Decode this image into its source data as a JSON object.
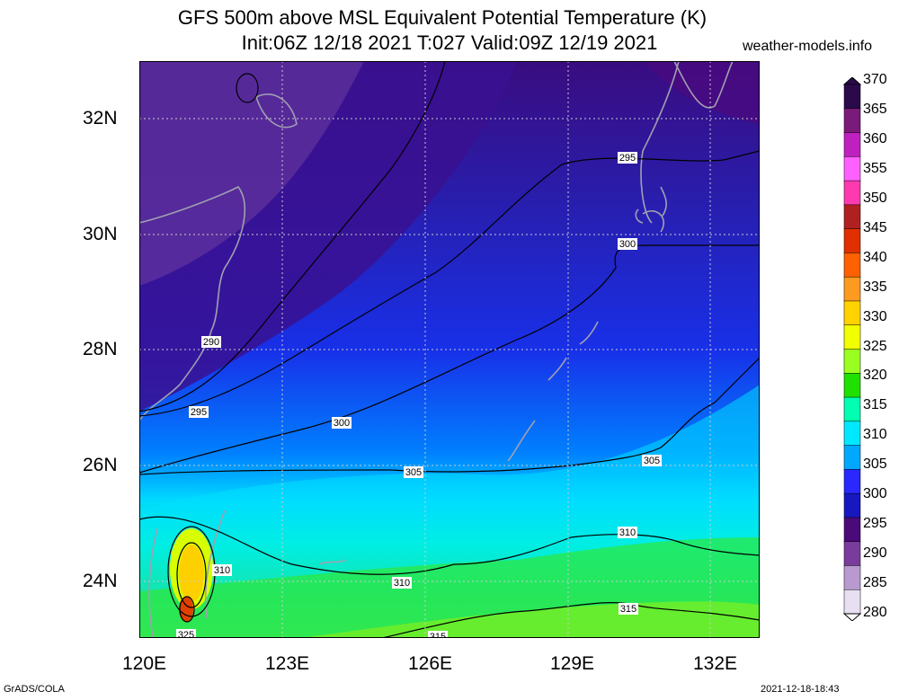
{
  "title": {
    "line1": "GFS 500m above MSL Equivalent Potential Temperature (K)",
    "line2": "Init:06Z 12/18 2021 T:027 Valid:09Z 12/19 2021"
  },
  "site": "weather-models.info",
  "credit": "GrADS/COLA",
  "timestamp": "2021-12-18-18:43",
  "map": {
    "lon_range": [
      120,
      133.1
    ],
    "lat_range": [
      23,
      33.1
    ],
    "lat_labels": [
      "32N",
      "30N",
      "28N",
      "26N",
      "24N"
    ],
    "lon_labels": [
      "120E",
      "123E",
      "126E",
      "129E",
      "132E"
    ],
    "grid_lines": "dotted"
  },
  "contours": [
    {
      "label": "290",
      "line_labels": [
        "290"
      ]
    },
    {
      "label": "295",
      "line_labels": [
        "295",
        "295"
      ]
    },
    {
      "label": "300",
      "line_labels": [
        "300",
        "300"
      ]
    },
    {
      "label": "305",
      "line_labels": [
        "305",
        "305"
      ]
    },
    {
      "label": "310",
      "line_labels": [
        "310",
        "310",
        "310"
      ]
    },
    {
      "label": "315",
      "line_labels": [
        "315",
        "315"
      ]
    },
    {
      "label": "325",
      "line_labels": [
        "325"
      ]
    }
  ],
  "colorbar": {
    "ticks": [
      "370",
      "365",
      "360",
      "355",
      "350",
      "345",
      "340",
      "335",
      "330",
      "325",
      "320",
      "315",
      "310",
      "305",
      "300",
      "295",
      "290",
      "285",
      "280"
    ],
    "colors": [
      "#2a0a4a",
      "#7a1a7a",
      "#c020c0",
      "#ff60ff",
      "#ff3ab0",
      "#b02020",
      "#e03000",
      "#ff6000",
      "#ff9a20",
      "#ffd200",
      "#f2ff00",
      "#9aff20",
      "#20e000",
      "#00ffb0",
      "#00e8ff",
      "#00a8ff",
      "#2828ff",
      "#1818c0",
      "#4a0a7a",
      "#7a3c9c",
      "#b89ad0",
      "#e8e0f2"
    ]
  }
}
